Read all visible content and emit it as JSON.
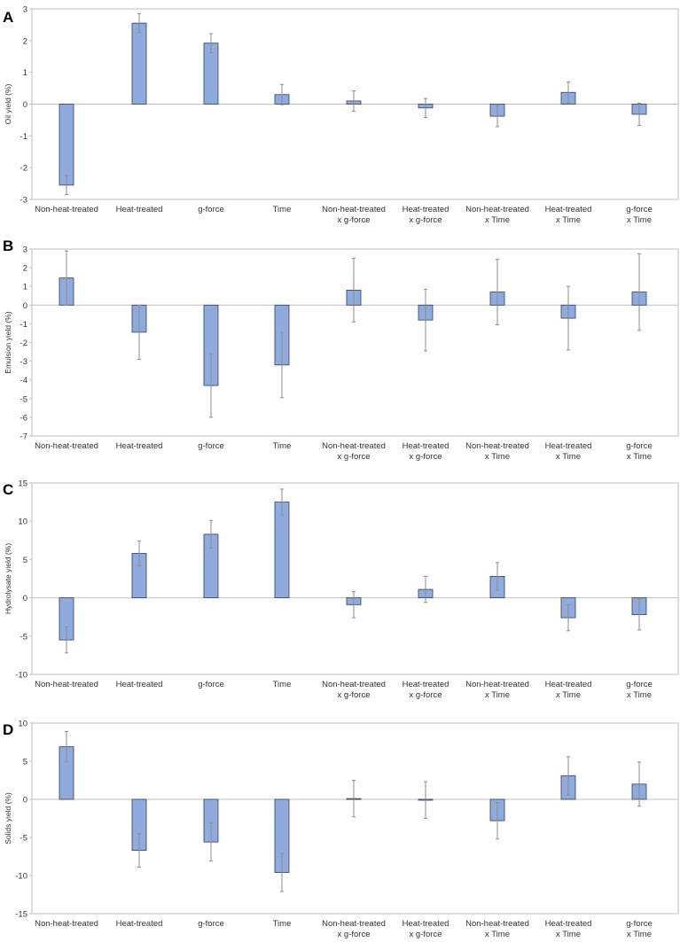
{
  "colors": {
    "bar_fill": "#8faadc",
    "bar_stroke": "#2f3f5f",
    "error_bar": "#8c8c8c",
    "axis": "#bfbfbf",
    "text": "#333333"
  },
  "chart_data": [
    {
      "panel": "A",
      "type": "bar",
      "ylabel": "Oil yield (%)",
      "ylim": [
        -3,
        3
      ],
      "yticks": [
        3,
        2,
        1,
        0,
        -1,
        -2,
        -3
      ],
      "categories": [
        [
          "Non-heat-treated"
        ],
        [
          "Heat-treated"
        ],
        [
          "g-force"
        ],
        [
          "Time"
        ],
        [
          "Non-heat-treated",
          "x g-force"
        ],
        [
          "Heat-treated",
          "x g-force"
        ],
        [
          "Non-heat-treated",
          "x Time"
        ],
        [
          "Heat-treated",
          "x Time"
        ],
        [
          "g-force",
          "x Time"
        ]
      ],
      "values": [
        -2.55,
        2.55,
        1.92,
        0.3,
        0.1,
        -0.12,
        -0.38,
        0.37,
        -0.32
      ],
      "errors": [
        0.3,
        0.3,
        0.3,
        0.32,
        0.32,
        0.3,
        0.33,
        0.33,
        0.35
      ]
    },
    {
      "panel": "B",
      "type": "bar",
      "ylabel": "Emulsion yield (%)",
      "ylim": [
        -7,
        3
      ],
      "yticks": [
        3,
        2,
        1,
        0,
        -1,
        -2,
        -3,
        -4,
        -5,
        -6,
        -7
      ],
      "categories": [
        [
          "Non-heat-treated"
        ],
        [
          "Heat-treated"
        ],
        [
          "g-force"
        ],
        [
          "Time"
        ],
        [
          "Non-heat-treated",
          "x g-force"
        ],
        [
          "Heat-treated",
          "x g-force"
        ],
        [
          "Non-heat-treated",
          "x Time"
        ],
        [
          "Heat-treated",
          "x Time"
        ],
        [
          "g-force",
          "x Time"
        ]
      ],
      "values": [
        1.45,
        -1.45,
        -4.3,
        -3.2,
        0.8,
        -0.8,
        0.7,
        -0.7,
        0.7
      ],
      "errors": [
        1.45,
        1.45,
        1.7,
        1.75,
        1.7,
        1.65,
        1.75,
        1.7,
        2.05
      ]
    },
    {
      "panel": "C",
      "type": "bar",
      "ylabel": "Hydrolysate yield (%)",
      "ylim": [
        -10,
        15
      ],
      "yticks": [
        15,
        10,
        5,
        0,
        -5,
        -10
      ],
      "categories": [
        [
          "Non-heat-treated"
        ],
        [
          "Heat-treated"
        ],
        [
          "g-force"
        ],
        [
          "Time"
        ],
        [
          "Non-heat-treated",
          "x g-force"
        ],
        [
          "Heat-treated",
          "x g-force"
        ],
        [
          "Non-heat-treated",
          "x Time"
        ],
        [
          "Heat-treated",
          "x Time"
        ],
        [
          "g-force",
          "x Time"
        ]
      ],
      "values": [
        -5.5,
        5.8,
        8.3,
        12.5,
        -0.9,
        1.1,
        2.8,
        -2.6,
        -2.2
      ],
      "errors": [
        1.7,
        1.6,
        1.8,
        1.7,
        1.7,
        1.7,
        1.8,
        1.7,
        2.0
      ]
    },
    {
      "panel": "D",
      "type": "bar",
      "ylabel": "Solids yield (%)",
      "ylim": [
        -15,
        10
      ],
      "yticks": [
        10,
        5,
        0,
        -5,
        -10,
        -15
      ],
      "categories": [
        [
          "Non-heat-treated"
        ],
        [
          "Heat-treated"
        ],
        [
          "g-force"
        ],
        [
          "Time"
        ],
        [
          "Non-heat-treated",
          "x g-force"
        ],
        [
          "Heat-treated",
          "x g-force"
        ],
        [
          "Non-heat-treated",
          "x Time"
        ],
        [
          "Heat-treated",
          "x Time"
        ],
        [
          "g-force",
          "x Time"
        ]
      ],
      "values": [
        6.9,
        -6.7,
        -5.6,
        -9.6,
        0.1,
        -0.1,
        -2.8,
        3.1,
        2.0
      ],
      "errors": [
        2.0,
        2.2,
        2.5,
        2.5,
        2.4,
        2.4,
        2.4,
        2.5,
        2.9
      ]
    }
  ]
}
